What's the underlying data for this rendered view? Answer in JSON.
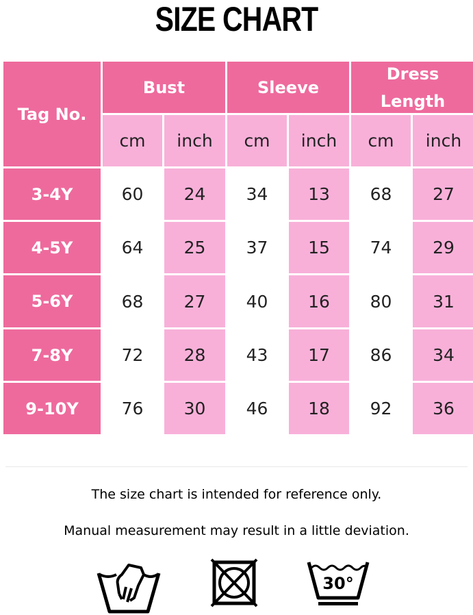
{
  "title": "SIZE CHART",
  "table": {
    "tag_header": "Tag No.",
    "groups": [
      "Bust",
      "Sleeve",
      "Dress Length"
    ],
    "units": [
      "cm",
      "inch",
      "cm",
      "inch",
      "cm",
      "inch"
    ],
    "rows": [
      {
        "tag": "3-4Y",
        "values": [
          "60",
          "24",
          "34",
          "13",
          "68",
          "27"
        ]
      },
      {
        "tag": "4-5Y",
        "values": [
          "64",
          "25",
          "37",
          "15",
          "74",
          "29"
        ]
      },
      {
        "tag": "5-6Y",
        "values": [
          "68",
          "27",
          "40",
          "16",
          "80",
          "31"
        ]
      },
      {
        "tag": "7-8Y",
        "values": [
          "72",
          "28",
          "43",
          "17",
          "86",
          "34"
        ]
      },
      {
        "tag": "9-10Y",
        "values": [
          "76",
          "30",
          "46",
          "18",
          "92",
          "36"
        ]
      }
    ]
  },
  "notes": [
    "The size chart is intended for reference only.",
    "Manual measurement may result in a little deviation."
  ],
  "icons": {
    "hand_wash": "hand-wash-icon",
    "no_tumble_dry": "do-not-tumble-dry-icon",
    "wash_30": "wash-30-icon",
    "wash_30_label": "30°"
  },
  "colors": {
    "header": "#ee6a9d",
    "subheader": "#f8b0d9"
  }
}
